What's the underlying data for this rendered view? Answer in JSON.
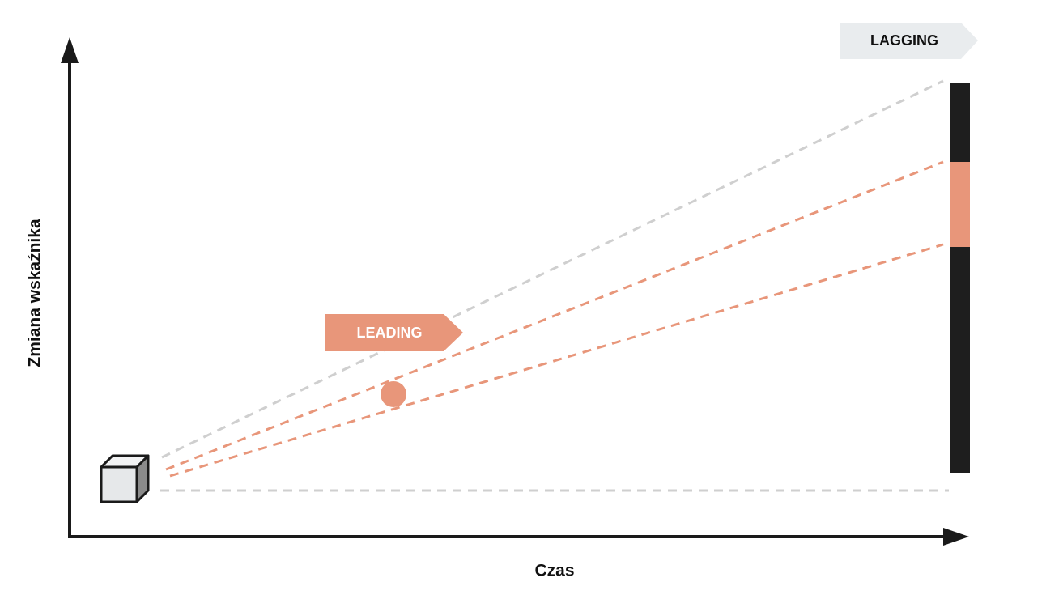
{
  "axes": {
    "y_label": "Zmiana wskaźnika",
    "x_label": "Czas"
  },
  "labels": {
    "leading": "LEADING",
    "lagging": "LAGGING"
  }
}
